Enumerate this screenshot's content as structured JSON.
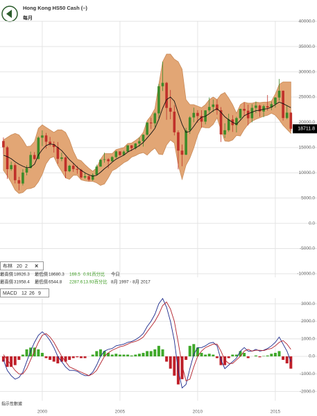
{
  "header": {
    "title": "Hong Kong HS50 Cash (–)",
    "subtitle": "每月"
  },
  "indicator_box": {
    "name": "布林",
    "params": [
      20,
      2
    ]
  },
  "stats": {
    "rows": [
      [
        "最高價",
        "18926.3",
        "最低價",
        "18680.3",
        "169.5",
        "0.91百分比",
        "今日"
      ],
      [
        "最高價",
        "31958.4",
        "最低價",
        "6544.8",
        "2287.6",
        "13.93百分比",
        "8月 1997 - 8月 2017"
      ]
    ]
  },
  "macd_box": {
    "name": "MACD",
    "params": [
      12,
      26,
      9
    ]
  },
  "footnote": "指示性數據",
  "chart_data": [
    {
      "type": "candlestick",
      "up_color": "#3d8b2a",
      "down_color": "#c0302a",
      "grid": true,
      "x": [
        1997.5,
        1997.75,
        1998,
        1998.25,
        1998.5,
        1998.75,
        1999,
        1999.25,
        1999.5,
        1999.75,
        2000,
        2000.25,
        2000.5,
        2000.75,
        2001,
        2001.25,
        2001.5,
        2001.75,
        2002,
        2002.25,
        2002.5,
        2002.75,
        2003,
        2003.25,
        2003.5,
        2003.75,
        2004,
        2004.25,
        2004.5,
        2004.75,
        2005,
        2005.25,
        2005.5,
        2005.75,
        2006,
        2006.25,
        2006.5,
        2006.75,
        2007,
        2007.25,
        2007.5,
        2007.75,
        2008,
        2008.25,
        2008.5,
        2008.75,
        2009,
        2009.25,
        2009.5,
        2009.75,
        2010,
        2010.25,
        2010.5,
        2010.75,
        2011,
        2011.25,
        2011.5,
        2011.75,
        2012,
        2012.25,
        2012.5,
        2012.75,
        2013,
        2013.25,
        2013.5,
        2013.75,
        2014,
        2014.25,
        2014.5,
        2014.75,
        2015,
        2015.25,
        2015.5,
        2015.75,
        2016
      ],
      "open": [
        16300,
        15050,
        10720,
        11520,
        8540,
        7880,
        10050,
        10940,
        13530,
        12730,
        16960,
        17400,
        16150,
        15650,
        15100,
        12760,
        13040,
        10300,
        11400,
        10740,
        10600,
        9070,
        9320,
        8630,
        9580,
        11230,
        12580,
        12680,
        12290,
        13120,
        14230,
        13520,
        14200,
        15430,
        14880,
        15800,
        16270,
        17540,
        19960,
        19800,
        21770,
        27140,
        27810,
        22850,
        22100,
        18020,
        14390,
        13580,
        18380,
        20960,
        21870,
        21240,
        20130,
        22360,
        23040,
        23530,
        22400,
        17590,
        18430,
        20560,
        19440,
        20840,
        22660,
        22300,
        20800,
        22860,
        23310,
        22150,
        23190,
        22930,
        23600,
        24900,
        26250,
        20850,
        21910
      ],
      "high": [
        17000,
        15300,
        12200,
        11900,
        9200,
        10700,
        11500,
        14200,
        14100,
        17200,
        18400,
        17900,
        17100,
        16200,
        16100,
        14000,
        13300,
        11600,
        11900,
        11400,
        10800,
        10000,
        9700,
        9900,
        11600,
        12700,
        14000,
        12900,
        13300,
        14400,
        14300,
        14400,
        15500,
        15500,
        15900,
        17000,
        17600,
        20000,
        20900,
        22000,
        27600,
        31958,
        28000,
        26400,
        23400,
        18400,
        15600,
        18900,
        21200,
        22900,
        22400,
        22400,
        22400,
        24900,
        24500,
        24500,
        23000,
        19800,
        21700,
        21400,
        21100,
        22700,
        23900,
        23500,
        23600,
        24100,
        23500,
        23500,
        25400,
        24100,
        25000,
        28588,
        26300,
        23400,
        22000
      ],
      "low": [
        13700,
        8775,
        10400,
        7900,
        6545,
        7500,
        9500,
        10900,
        12600,
        12700,
        15300,
        14800,
        15300,
        14000,
        11800,
        12300,
        8934,
        10100,
        10200,
        9800,
        8800,
        8800,
        8330,
        8400,
        9500,
        11200,
        12000,
        10900,
        12200,
        12900,
        13300,
        13400,
        14100,
        14300,
        14600,
        15200,
        15200,
        17400,
        18700,
        19000,
        20800,
        26200,
        20500,
        20600,
        17400,
        10676,
        11300,
        13500,
        17700,
        20000,
        19900,
        18900,
        19600,
        21900,
        22000,
        21500,
        16100,
        16900,
        18100,
        18100,
        18000,
        20500,
        21200,
        19400,
        20000,
        21800,
        21100,
        21000,
        22300,
        22400,
        22900,
        24300,
        20350,
        20600,
        18300
      ],
      "close": [
        15050,
        10720,
        11520,
        8540,
        7880,
        10050,
        10940,
        13530,
        12730,
        16960,
        17400,
        16150,
        15650,
        15100,
        12760,
        13040,
        10300,
        11400,
        10740,
        10600,
        9070,
        9320,
        8630,
        9580,
        11230,
        12580,
        12680,
        12290,
        13120,
        14230,
        13520,
        14200,
        15430,
        14880,
        15800,
        16270,
        17540,
        19960,
        19800,
        21770,
        27140,
        27810,
        22850,
        22100,
        18020,
        14390,
        13580,
        18380,
        20960,
        21870,
        21240,
        20130,
        22360,
        23040,
        23530,
        22400,
        17590,
        18430,
        20560,
        19440,
        20840,
        22660,
        22300,
        20800,
        22860,
        23310,
        22150,
        23190,
        22930,
        23600,
        24900,
        26250,
        20850,
        21910,
        18712
      ],
      "bands": {
        "fill": "#e2a675",
        "line_color": "#111111",
        "upper": [
          16500,
          17000,
          17500,
          17800,
          17500,
          16500,
          15200,
          15300,
          16200,
          18800,
          19500,
          19000,
          18500,
          18000,
          18500,
          18500,
          18000,
          16500,
          14300,
          12700,
          12400,
          11600,
          10900,
          10300,
          11000,
          12700,
          13800,
          13800,
          13800,
          14600,
          14800,
          15000,
          15800,
          15900,
          16400,
          17000,
          18000,
          20300,
          21300,
          22700,
          27500,
          32000,
          33500,
          33500,
          32500,
          32000,
          30500,
          24500,
          23500,
          23500,
          23200,
          22900,
          23500,
          24500,
          25000,
          24500,
          25500,
          25900,
          24800,
          23500,
          21800,
          23500,
          24000,
          23800,
          23800,
          24000,
          23900,
          24000,
          24000,
          24200,
          25600,
          27500,
          28000,
          28000,
          28000
        ],
        "middle": [
          13500,
          13200,
          12800,
          12200,
          11700,
          11300,
          11000,
          11100,
          11700,
          13500,
          14600,
          15400,
          15700,
          15600,
          15000,
          14400,
          13500,
          12600,
          11900,
          11100,
          10500,
          10000,
          9600,
          9300,
          9500,
          10100,
          10800,
          11400,
          12100,
          12700,
          13100,
          13500,
          14100,
          14500,
          14900,
          15400,
          16000,
          16900,
          17800,
          18800,
          20600,
          22800,
          24500,
          25000,
          24200,
          21800,
          19600,
          18000,
          18200,
          19200,
          20300,
          21000,
          21200,
          21700,
          22300,
          22700,
          22000,
          21100,
          20500,
          20000,
          19600,
          20400,
          21300,
          21700,
          22000,
          22300,
          22400,
          22600,
          22700,
          23000,
          23500,
          24000,
          23700,
          23300,
          22900
        ],
        "lower": [
          10500,
          9400,
          8100,
          6600,
          5900,
          6100,
          6800,
          6900,
          7200,
          8200,
          9700,
          11800,
          12900,
          13200,
          11500,
          10300,
          9000,
          8700,
          9500,
          9500,
          8600,
          8400,
          8300,
          8300,
          8000,
          7500,
          7800,
          9000,
          10400,
          10800,
          11400,
          12000,
          12400,
          13100,
          13400,
          13800,
          14000,
          13500,
          14300,
          14900,
          13700,
          13600,
          15500,
          16500,
          15900,
          11600,
          8700,
          11500,
          12900,
          14900,
          17400,
          19100,
          18900,
          18900,
          19600,
          20900,
          18500,
          16300,
          16200,
          16500,
          17400,
          17300,
          18600,
          19600,
          20200,
          20600,
          20900,
          21200,
          21400,
          21800,
          21400,
          20500,
          19400,
          18600,
          17800
        ]
      },
      "last_price": 18711.8,
      "xlim": [
        1997.28,
        2016.12
      ],
      "xticks": [
        2000,
        2005,
        2010,
        2015
      ],
      "ylim": [
        -10700,
        40100
      ],
      "yticks": [
        {
          "value": 40000,
          "label": "40000.0"
        },
        {
          "value": 35000,
          "label": "35000.0"
        },
        {
          "value": 30000,
          "label": "30000.0"
        },
        {
          "value": 25000,
          "label": "25000.0"
        },
        {
          "value": 20000,
          "label": "20000.0"
        },
        {
          "value": 15000,
          "label": "15000.0"
        },
        {
          "value": 10000,
          "label": "10000.0"
        },
        {
          "value": 5000,
          "label": "5000.0"
        },
        {
          "value": 0,
          "label": "0.0"
        },
        {
          "value": -5000,
          "label": "-5000.0"
        },
        {
          "value": -10000,
          "label": "-10000.0"
        }
      ]
    },
    {
      "type": "macd",
      "grid": true,
      "x": [
        1997.5,
        1997.75,
        1998,
        1998.25,
        1998.5,
        1998.75,
        1999,
        1999.25,
        1999.5,
        1999.75,
        2000,
        2000.25,
        2000.5,
        2000.75,
        2001,
        2001.25,
        2001.5,
        2001.75,
        2002,
        2002.25,
        2002.5,
        2002.75,
        2003,
        2003.25,
        2003.5,
        2003.75,
        2004,
        2004.25,
        2004.5,
        2004.75,
        2005,
        2005.25,
        2005.5,
        2005.75,
        2006,
        2006.25,
        2006.5,
        2006.75,
        2007,
        2007.25,
        2007.5,
        2007.75,
        2008,
        2008.25,
        2008.5,
        2008.75,
        2009,
        2009.25,
        2009.5,
        2009.75,
        2010,
        2010.25,
        2010.5,
        2010.75,
        2011,
        2011.25,
        2011.5,
        2011.75,
        2012,
        2012.25,
        2012.5,
        2012.75,
        2013,
        2013.25,
        2013.5,
        2013.75,
        2014,
        2014.25,
        2014.5,
        2014.75,
        2015,
        2015.25,
        2015.5,
        2015.75,
        2016
      ],
      "lines": [
        {
          "color": "#1c2a8c",
          "values": [
            -200,
            -800,
            -1100,
            -1300,
            -1200,
            -900,
            -300,
            300,
            800,
            1200,
            1400,
            1200,
            900,
            500,
            0,
            -300,
            -600,
            -800,
            -800,
            -850,
            -1000,
            -1100,
            -1100,
            -900,
            -500,
            0,
            300,
            400,
            450,
            600,
            650,
            700,
            800,
            850,
            950,
            1100,
            1300,
            1700,
            2000,
            2400,
            3000,
            3300,
            2800,
            2000,
            900,
            -800,
            -1800,
            -1600,
            -700,
            100,
            500,
            500,
            600,
            750,
            800,
            600,
            -200,
            -700,
            -500,
            -300,
            -100,
            300,
            500,
            300,
            300,
            400,
            300,
            350,
            450,
            600,
            800,
            1100,
            700,
            300,
            -300
          ]
        },
        {
          "color": "#b3202a",
          "values": [
            100,
            -200,
            -500,
            -800,
            -1000,
            -1000,
            -700,
            -200,
            300,
            800,
            1200,
            1300,
            1100,
            800,
            400,
            0,
            -300,
            -600,
            -700,
            -800,
            -900,
            -1000,
            -1100,
            -1000,
            -800,
            -400,
            0,
            200,
            350,
            450,
            550,
            600,
            700,
            800,
            850,
            950,
            1100,
            1400,
            1700,
            2000,
            2400,
            2900,
            3100,
            2700,
            2000,
            800,
            -500,
            -1400,
            -1300,
            -600,
            0,
            300,
            500,
            600,
            700,
            700,
            300,
            -200,
            -400,
            -400,
            -200,
            0,
            300,
            400,
            300,
            350,
            350,
            330,
            400,
            450,
            600,
            800,
            900,
            700,
            400
          ]
        }
      ],
      "histogram": {
        "up_color": "#3fa82a",
        "down_color": "#c0202a",
        "values": [
          -300,
          -600,
          -600,
          -500,
          -200,
          100,
          400,
          500,
          500,
          400,
          200,
          -100,
          -200,
          -300,
          -400,
          -300,
          -300,
          -200,
          -100,
          -50,
          -100,
          -100,
          0,
          100,
          300,
          400,
          300,
          200,
          100,
          150,
          100,
          100,
          100,
          50,
          100,
          150,
          200,
          300,
          300,
          400,
          600,
          400,
          -300,
          -700,
          -1100,
          -1600,
          -1300,
          -200,
          600,
          700,
          500,
          200,
          100,
          150,
          100,
          -100,
          -500,
          -500,
          -100,
          100,
          100,
          300,
          200,
          -100,
          0,
          50,
          -50,
          20,
          50,
          150,
          200,
          300,
          -200,
          -400,
          -700
        ]
      },
      "xlim": [
        1997.28,
        2016.12
      ],
      "xticks": [
        2000,
        2005,
        2010,
        2015
      ],
      "ylim": [
        -2530,
        3320
      ],
      "yticks": [
        {
          "value": 3000,
          "label": "3000.0"
        },
        {
          "value": 2000,
          "label": "2000.0"
        },
        {
          "value": 1000,
          "label": "1000.0"
        },
        {
          "value": 0,
          "label": "0.0"
        },
        {
          "value": -1000,
          "label": "-1000.0"
        },
        {
          "value": -2000,
          "label": "-2000.0"
        }
      ]
    }
  ]
}
